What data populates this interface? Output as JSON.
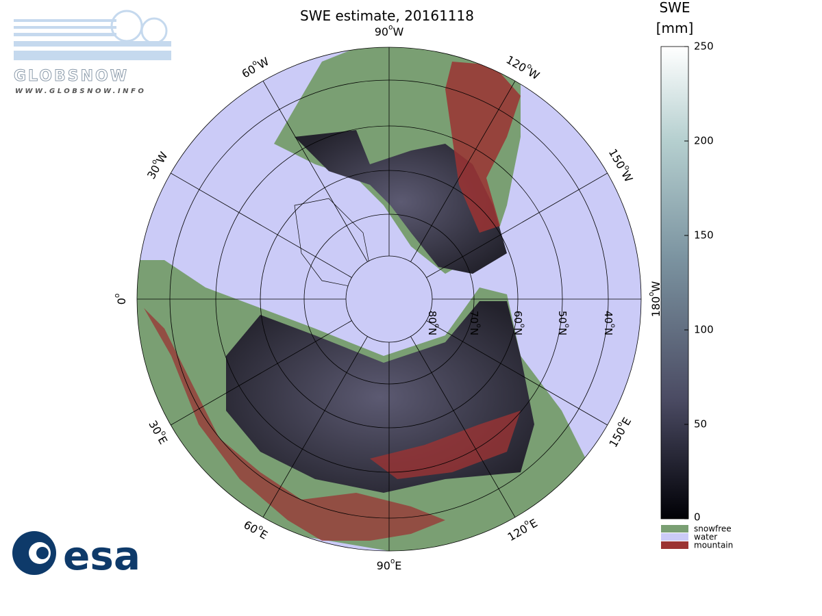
{
  "title": "SWE estimate, 20161118",
  "degree_mark": "o",
  "longitude_labels": [
    {
      "deg": "0",
      "hemi": ""
    },
    {
      "deg": "30",
      "hemi": "W"
    },
    {
      "deg": "60",
      "hemi": "W"
    },
    {
      "deg": "90",
      "hemi": "W"
    },
    {
      "deg": "120",
      "hemi": "W"
    },
    {
      "deg": "150",
      "hemi": "W"
    },
    {
      "deg": "180",
      "hemi": "W"
    },
    {
      "deg": "150",
      "hemi": "E"
    },
    {
      "deg": "120",
      "hemi": "E"
    },
    {
      "deg": "90",
      "hemi": "E"
    },
    {
      "deg": "60",
      "hemi": "E"
    },
    {
      "deg": "30",
      "hemi": "E"
    }
  ],
  "latitude_labels": [
    {
      "deg": "80",
      "hemi": "N"
    },
    {
      "deg": "70",
      "hemi": "N"
    },
    {
      "deg": "60",
      "hemi": "N"
    },
    {
      "deg": "50",
      "hemi": "N"
    },
    {
      "deg": "40",
      "hemi": "N"
    }
  ],
  "colorbar": {
    "title_line1": "SWE",
    "title_line2": "[mm]",
    "lim": [
      0,
      250
    ],
    "ticks": [
      0,
      50,
      100,
      150,
      200,
      250
    ]
  },
  "legend": [
    {
      "name": "snowfree",
      "color": "#7a9f73"
    },
    {
      "name": "water",
      "color": "#cbcbf7"
    },
    {
      "name": "mountain",
      "color": "#9b3333"
    }
  ],
  "logos": {
    "globsnow": "GLOBSNOW",
    "globsnow_url": "WWW.GLOBSNOW.INFO",
    "esa": "esa"
  }
}
